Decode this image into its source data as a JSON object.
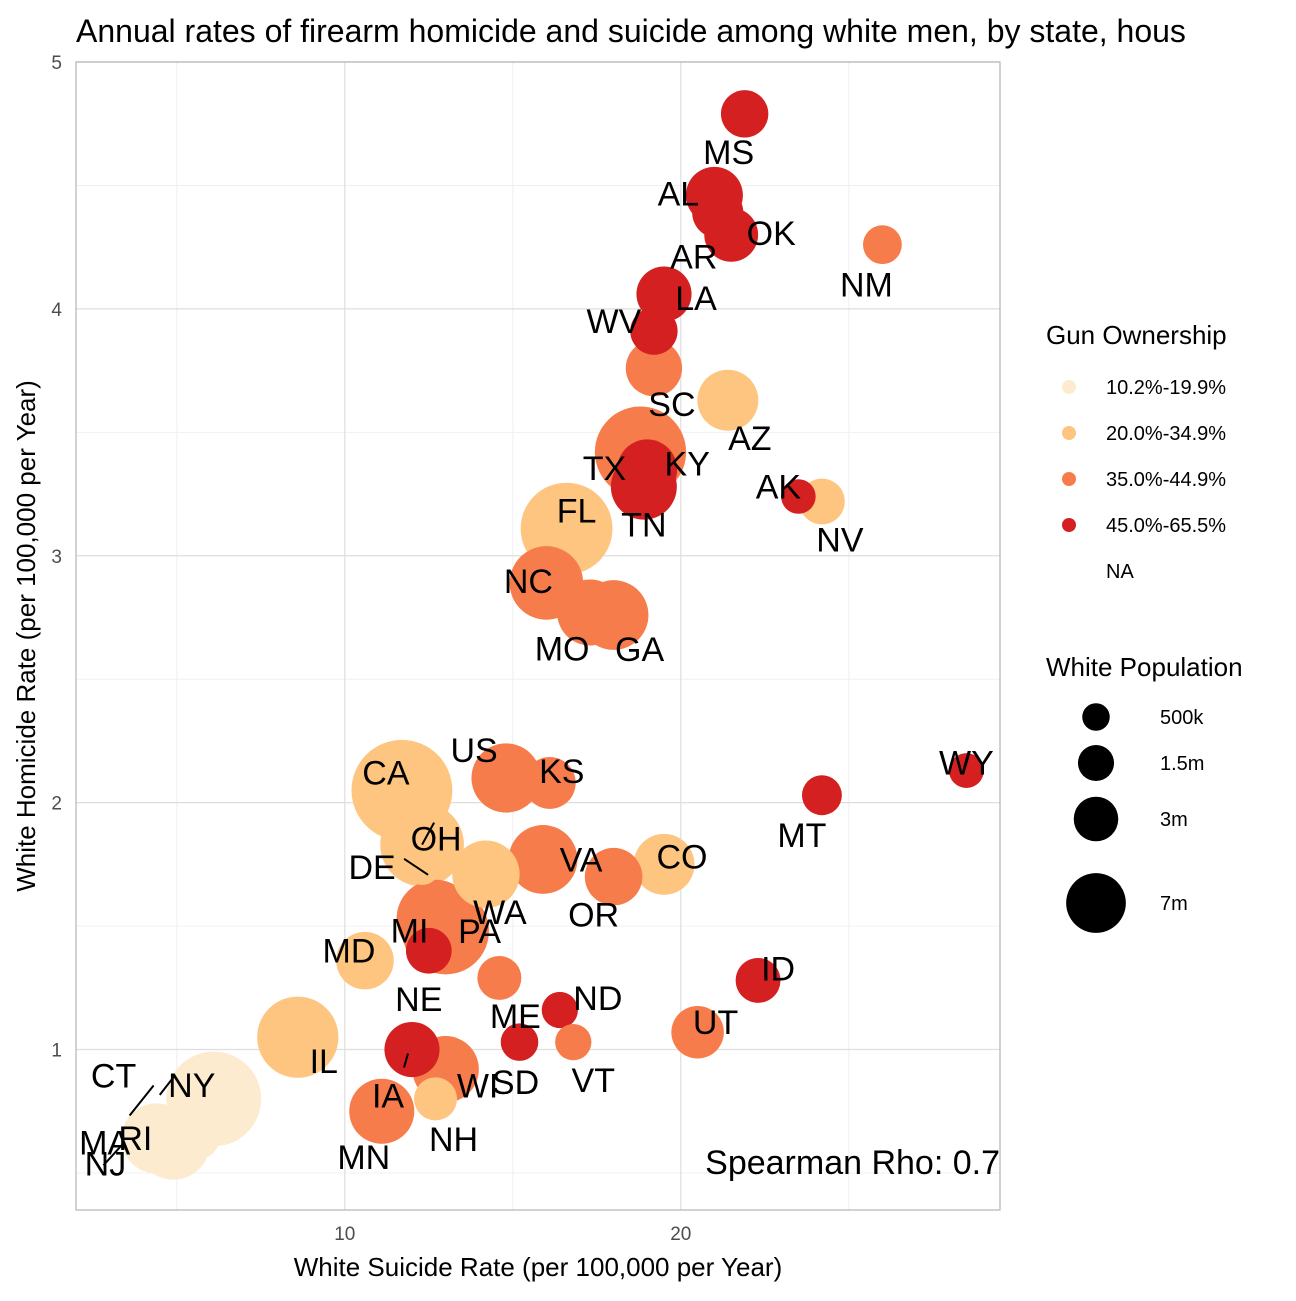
{
  "chart_data": {
    "type": "scatter",
    "title": "Annual rates of firearm homicide and suicide among white men, by state, hous",
    "xlabel": "White Suicide Rate (per 100,000 per Year)",
    "ylabel": "White Homicide Rate (per 100,000 per Year)",
    "xlim": [
      2.0,
      29.5
    ],
    "ylim": [
      0.35,
      5.0
    ],
    "x_ticks": [
      10,
      20
    ],
    "x_tick_labels": [
      "10",
      "20"
    ],
    "y_ticks": [
      1,
      2,
      3,
      4,
      5
    ],
    "y_tick_labels": [
      "1",
      "2",
      "3",
      "4",
      "5"
    ],
    "grid": true,
    "annotation": "Spearman Rho:  0.7",
    "legend_color": {
      "title": "Gun Ownership",
      "entries": [
        {
          "label": "10.2%-19.9%",
          "color": "#fdebd0"
        },
        {
          "label": "20.0%-34.9%",
          "color": "#fdc57f"
        },
        {
          "label": "35.0%-44.9%",
          "color": "#f77c4b"
        },
        {
          "label": "45.0%-65.5%",
          "color": "#d42020"
        },
        {
          "label": "NA",
          "color": ""
        }
      ]
    },
    "legend_size": {
      "title": "White Population",
      "entries": [
        {
          "label": "500k",
          "value": 0.5
        },
        {
          "label": "1.5m",
          "value": 1.5
        },
        {
          "label": "3m",
          "value": 3
        },
        {
          "label": "7m",
          "value": 7
        }
      ]
    },
    "points": [
      {
        "state": "MS",
        "x": 21.9,
        "y": 4.79,
        "group": 4,
        "pop": 1.7
      },
      {
        "state": "AL",
        "x": 21.0,
        "y": 4.46,
        "group": 4,
        "pop": 3.1
      },
      {
        "state": "AR",
        "x": 21.1,
        "y": 4.39,
        "group": 4,
        "pop": 2.2
      },
      {
        "state": "OK",
        "x": 21.5,
        "y": 4.3,
        "group": 4,
        "pop": 2.6
      },
      {
        "state": "NM",
        "x": 26.0,
        "y": 4.26,
        "group": 3,
        "pop": 0.8
      },
      {
        "state": "LA",
        "x": 19.5,
        "y": 4.06,
        "group": 4,
        "pop": 2.8
      },
      {
        "state": "WV",
        "x": 19.2,
        "y": 3.91,
        "group": 4,
        "pop": 1.7
      },
      {
        "state": "SC",
        "x": 19.2,
        "y": 3.76,
        "group": 3,
        "pop": 3.0
      },
      {
        "state": "AZ",
        "x": 21.4,
        "y": 3.63,
        "group": 2,
        "pop": 3.8
      },
      {
        "state": "TX",
        "x": 18.8,
        "y": 3.42,
        "group": 3,
        "pop": 11.5
      },
      {
        "state": "KY",
        "x": 19.0,
        "y": 3.35,
        "group": 4,
        "pop": 3.6
      },
      {
        "state": "TN",
        "x": 18.9,
        "y": 3.28,
        "group": 4,
        "pop": 4.8
      },
      {
        "state": "AK",
        "x": 23.5,
        "y": 3.24,
        "group": 4,
        "pop": 0.48
      },
      {
        "state": "NV",
        "x": 24.2,
        "y": 3.22,
        "group": 2,
        "pop": 1.5
      },
      {
        "state": "FL",
        "x": 16.6,
        "y": 3.11,
        "group": 2,
        "pop": 11.7
      },
      {
        "state": "NC",
        "x": 16.0,
        "y": 2.89,
        "group": 3,
        "pop": 6.5
      },
      {
        "state": "MO",
        "x": 17.3,
        "y": 2.77,
        "group": 3,
        "pop": 4.8
      },
      {
        "state": "GA",
        "x": 18.0,
        "y": 2.76,
        "group": 3,
        "pop": 5.6
      },
      {
        "state": "WY",
        "x": 28.5,
        "y": 2.13,
        "group": 4,
        "pop": 0.5
      },
      {
        "state": "US",
        "x": 14.8,
        "y": 2.1,
        "group": 3,
        "pop": 5.5
      },
      {
        "state": "KS",
        "x": 16.1,
        "y": 2.08,
        "group": 3,
        "pop": 2.3
      },
      {
        "state": "CA",
        "x": 11.7,
        "y": 2.05,
        "group": 2,
        "pop": 14.8
      },
      {
        "state": "MT",
        "x": 24.2,
        "y": 2.03,
        "group": 4,
        "pop": 0.9
      },
      {
        "state": "OH",
        "x": 12.3,
        "y": 1.83,
        "group": 2,
        "pop": 9.2
      },
      {
        "state": "VA",
        "x": 15.9,
        "y": 1.77,
        "group": 3,
        "pop": 5.4
      },
      {
        "state": "CO",
        "x": 19.5,
        "y": 1.75,
        "group": 2,
        "pop": 3.8
      },
      {
        "state": "DE",
        "x": 12.3,
        "y": 1.74,
        "group": 2,
        "pop": 0.6
      },
      {
        "state": "WA",
        "x": 14.2,
        "y": 1.71,
        "group": 2,
        "pop": 5.1
      },
      {
        "state": "OR",
        "x": 18.0,
        "y": 1.7,
        "group": 3,
        "pop": 3.2
      },
      {
        "state": "MI",
        "x": 12.7,
        "y": 1.53,
        "group": 3,
        "pop": 7.6
      },
      {
        "state": "PA",
        "x": 13.0,
        "y": 1.48,
        "group": 3,
        "pop": 10.1
      },
      {
        "state": "NE",
        "x": 12.5,
        "y": 1.4,
        "group": 4,
        "pop": 1.5
      },
      {
        "state": "MD",
        "x": 10.6,
        "y": 1.36,
        "group": 2,
        "pop": 3.2
      },
      {
        "state": "ME",
        "x": 14.6,
        "y": 1.29,
        "group": 3,
        "pop": 1.3
      },
      {
        "state": "ID",
        "x": 22.3,
        "y": 1.28,
        "group": 4,
        "pop": 1.4
      },
      {
        "state": "ND",
        "x": 16.4,
        "y": 1.16,
        "group": 4,
        "pop": 0.6
      },
      {
        "state": "UT",
        "x": 20.5,
        "y": 1.07,
        "group": 3,
        "pop": 2.4
      },
      {
        "state": "IL",
        "x": 8.6,
        "y": 1.05,
        "group": 2,
        "pop": 8.5
      },
      {
        "state": "SD",
        "x": 15.2,
        "y": 1.03,
        "group": 4,
        "pop": 0.7
      },
      {
        "state": "VT",
        "x": 16.8,
        "y": 1.03,
        "group": 3,
        "pop": 0.6
      },
      {
        "state": "IA",
        "x": 12.0,
        "y": 1.0,
        "group": 4,
        "pop": 2.8
      },
      {
        "state": "WI",
        "x": 13.0,
        "y": 0.92,
        "group": 3,
        "pop": 4.9
      },
      {
        "state": "NY",
        "x": 6.1,
        "y": 0.8,
        "group": 1,
        "pop": 12.7
      },
      {
        "state": "NH",
        "x": 12.7,
        "y": 0.8,
        "group": 2,
        "pop": 1.2
      },
      {
        "state": "MN",
        "x": 11.1,
        "y": 0.75,
        "group": 3,
        "pop": 4.6
      },
      {
        "state": "MA",
        "x": 4.4,
        "y": 0.64,
        "group": 1,
        "pop": 5.7
      },
      {
        "state": "RI",
        "x": 4.6,
        "y": 0.63,
        "group": 1,
        "pop": 0.9
      },
      {
        "state": "NJ",
        "x": 4.9,
        "y": 0.62,
        "group": 1,
        "pop": 6.3
      },
      {
        "state": "CT",
        "x": 5.5,
        "y": 0.66,
        "group": 1,
        "pop": 2.8
      }
    ]
  }
}
